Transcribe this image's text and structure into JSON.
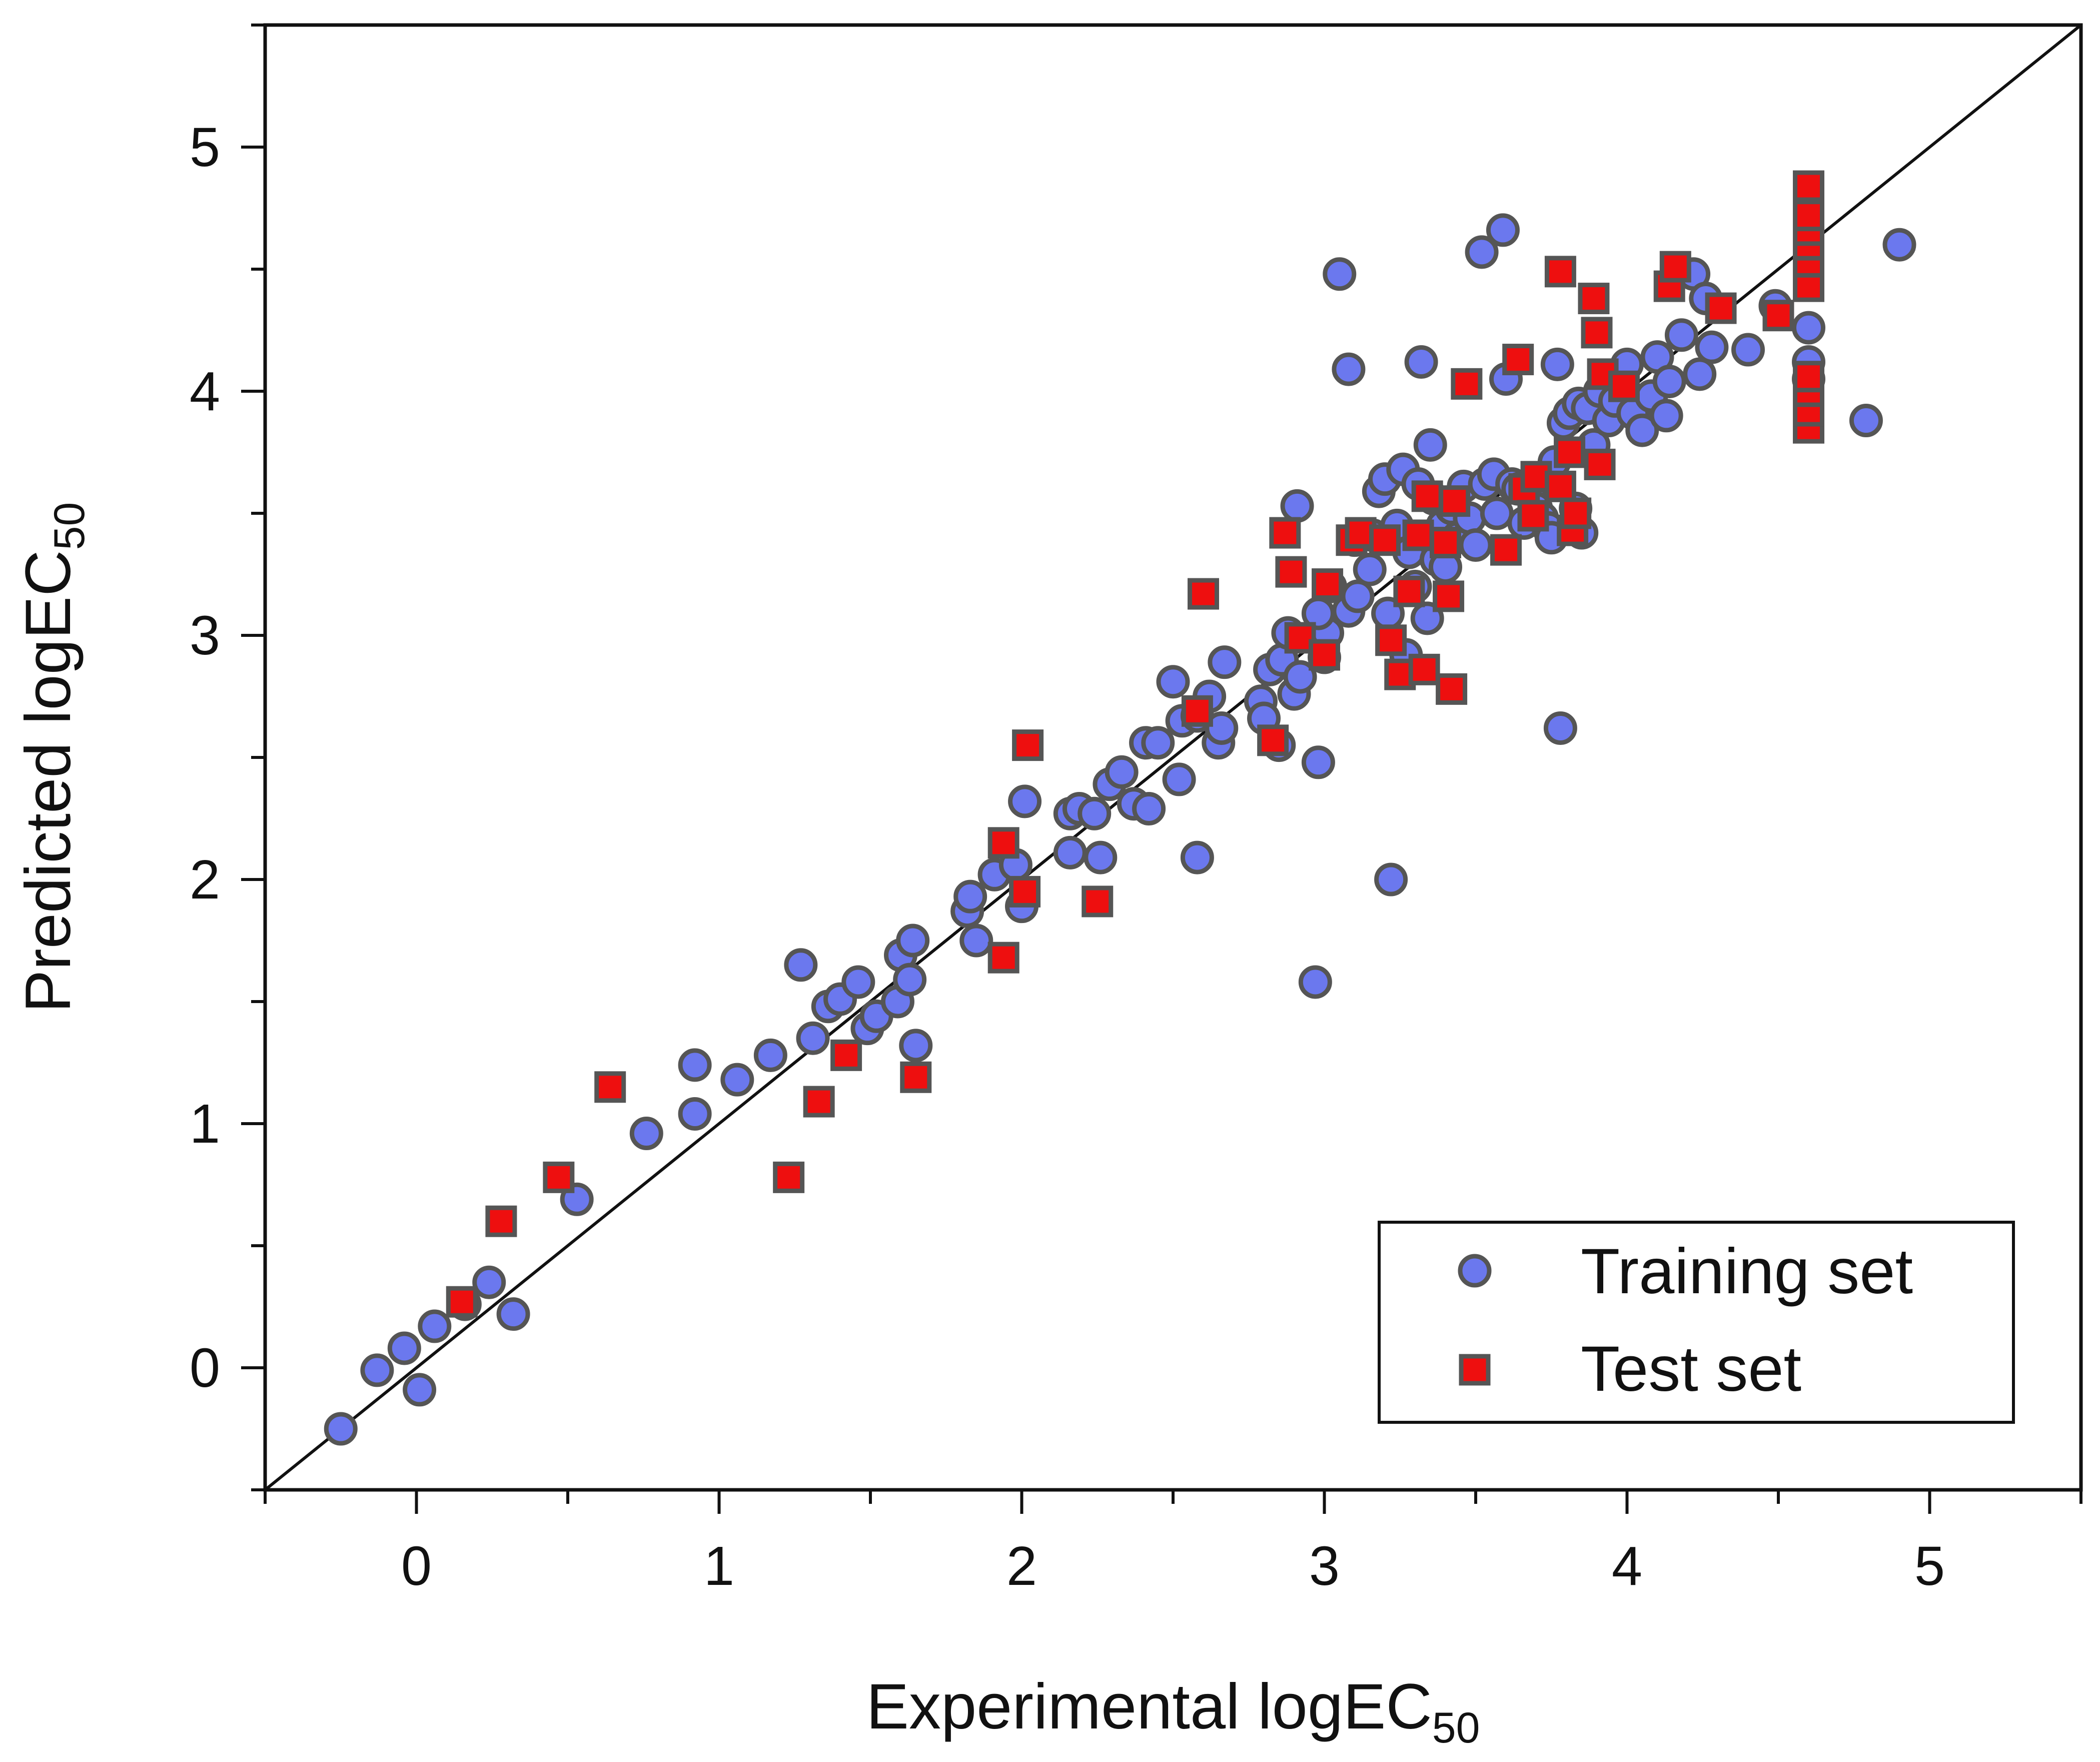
{
  "colors": {
    "training": "#6b78ee",
    "test": "#ee0f0f",
    "edge": "#555555",
    "axis": "#111111"
  },
  "chart_data": {
    "type": "scatter",
    "title": "",
    "xlabel": {
      "main": "Experimental logEC",
      "sub": "50"
    },
    "ylabel": {
      "main": "Predicted logEC",
      "sub": "50"
    },
    "xlim": [
      -0.5,
      5.5
    ],
    "ylim": [
      -0.5,
      5.5
    ],
    "xticks": [
      0,
      1,
      2,
      3,
      4,
      5
    ],
    "yticks": [
      0,
      1,
      2,
      3,
      4,
      5
    ],
    "xtick_labels": [
      "0",
      "1",
      "2",
      "3",
      "4",
      "5"
    ],
    "ytick_labels": [
      "0",
      "1",
      "2",
      "3",
      "4",
      "5"
    ],
    "reference_line": "y = x",
    "legend": {
      "position": "bottom-right",
      "entries": [
        "Training set",
        "Test set"
      ]
    },
    "series": [
      {
        "name": "Training set",
        "marker": "circle",
        "points": [
          [
            -0.25,
            -0.25
          ],
          [
            -0.13,
            -0.01
          ],
          [
            -0.04,
            0.08
          ],
          [
            0.01,
            -0.09
          ],
          [
            0.06,
            0.17
          ],
          [
            0.16,
            0.26
          ],
          [
            0.24,
            0.35
          ],
          [
            0.32,
            0.22
          ],
          [
            0.53,
            0.69
          ],
          [
            0.76,
            0.96
          ],
          [
            0.92,
            1.04
          ],
          [
            0.92,
            1.24
          ],
          [
            1.06,
            1.18
          ],
          [
            1.17,
            1.28
          ],
          [
            1.27,
            1.65
          ],
          [
            1.31,
            1.35
          ],
          [
            1.36,
            1.48
          ],
          [
            1.4,
            1.51
          ],
          [
            1.46,
            1.58
          ],
          [
            1.49,
            1.39
          ],
          [
            1.52,
            1.44
          ],
          [
            1.59,
            1.5
          ],
          [
            1.6,
            1.69
          ],
          [
            1.63,
            1.59
          ],
          [
            1.64,
            1.75
          ],
          [
            1.65,
            1.32
          ],
          [
            1.82,
            1.87
          ],
          [
            1.83,
            1.93
          ],
          [
            1.85,
            1.75
          ],
          [
            1.91,
            2.02
          ],
          [
            1.98,
            2.06
          ],
          [
            2.0,
            1.89
          ],
          [
            2.01,
            2.32
          ],
          [
            2.16,
            2.27
          ],
          [
            2.16,
            2.11
          ],
          [
            2.19,
            2.29
          ],
          [
            2.24,
            2.27
          ],
          [
            2.26,
            2.09
          ],
          [
            2.29,
            2.39
          ],
          [
            2.33,
            2.44
          ],
          [
            2.37,
            2.31
          ],
          [
            2.42,
            2.29
          ],
          [
            2.41,
            2.56
          ],
          [
            2.45,
            2.56
          ],
          [
            2.5,
            2.81
          ],
          [
            2.52,
            2.41
          ],
          [
            2.53,
            2.65
          ],
          [
            2.58,
            2.09
          ],
          [
            2.58,
            2.67
          ],
          [
            2.62,
            2.75
          ],
          [
            2.65,
            2.56
          ],
          [
            2.66,
            2.62
          ],
          [
            2.67,
            2.89
          ],
          [
            2.79,
            2.73
          ],
          [
            2.8,
            2.66
          ],
          [
            2.82,
            2.86
          ],
          [
            2.85,
            2.55
          ],
          [
            2.86,
            2.9
          ],
          [
            2.88,
            3.01
          ],
          [
            2.9,
            2.76
          ],
          [
            2.91,
            3.53
          ],
          [
            2.92,
            2.83
          ],
          [
            2.97,
            1.58
          ],
          [
            2.98,
            2.48
          ],
          [
            3.0,
            2.91
          ],
          [
            3.01,
            3.01
          ],
          [
            2.98,
            3.09
          ],
          [
            3.02,
            3.2
          ],
          [
            3.05,
            4.48
          ],
          [
            3.08,
            3.1
          ],
          [
            3.08,
            4.09
          ],
          [
            3.1,
            3.39
          ],
          [
            3.11,
            3.16
          ],
          [
            3.15,
            3.27
          ],
          [
            3.16,
            3.41
          ],
          [
            3.18,
            3.59
          ],
          [
            3.2,
            3.64
          ],
          [
            3.21,
            3.09
          ],
          [
            3.22,
            2.0
          ],
          [
            3.24,
            3.45
          ],
          [
            3.26,
            3.68
          ],
          [
            3.27,
            2.92
          ],
          [
            3.28,
            3.34
          ],
          [
            3.3,
            3.2
          ],
          [
            3.31,
            3.62
          ],
          [
            3.32,
            4.12
          ],
          [
            3.34,
            3.07
          ],
          [
            3.35,
            3.78
          ],
          [
            3.36,
            3.56
          ],
          [
            3.37,
            3.31
          ],
          [
            3.39,
            3.45
          ],
          [
            3.4,
            3.28
          ],
          [
            3.42,
            3.52
          ],
          [
            3.44,
            3.4
          ],
          [
            3.46,
            3.61
          ],
          [
            3.48,
            3.48
          ],
          [
            3.5,
            3.37
          ],
          [
            3.52,
            4.57
          ],
          [
            3.53,
            3.62
          ],
          [
            3.56,
            3.66
          ],
          [
            3.57,
            3.5
          ],
          [
            3.59,
            4.66
          ],
          [
            3.6,
            4.05
          ],
          [
            3.62,
            3.62
          ],
          [
            3.64,
            3.6
          ],
          [
            3.66,
            3.46
          ],
          [
            3.68,
            3.59
          ],
          [
            3.7,
            3.52
          ],
          [
            3.72,
            3.48
          ],
          [
            3.74,
            3.44
          ],
          [
            3.75,
            3.4
          ],
          [
            3.76,
            3.71
          ],
          [
            3.77,
            4.11
          ],
          [
            3.78,
            2.62
          ],
          [
            3.79,
            3.87
          ],
          [
            3.81,
            3.91
          ],
          [
            3.83,
            3.52
          ],
          [
            3.84,
            3.95
          ],
          [
            3.85,
            3.42
          ],
          [
            3.87,
            3.93
          ],
          [
            3.89,
            3.78
          ],
          [
            3.91,
            4.0
          ],
          [
            3.94,
            3.88
          ],
          [
            3.96,
            3.96
          ],
          [
            3.98,
            4.07
          ],
          [
            4.0,
            4.11
          ],
          [
            4.02,
            3.91
          ],
          [
            4.05,
            3.84
          ],
          [
            4.08,
            3.98
          ],
          [
            4.1,
            4.14
          ],
          [
            4.13,
            3.9
          ],
          [
            4.14,
            4.04
          ],
          [
            4.18,
            4.23
          ],
          [
            4.22,
            4.48
          ],
          [
            4.24,
            4.07
          ],
          [
            4.26,
            4.38
          ],
          [
            4.28,
            4.18
          ],
          [
            4.4,
            4.17
          ],
          [
            4.49,
            4.35
          ],
          [
            4.6,
            4.05
          ],
          [
            4.6,
            4.12
          ],
          [
            4.6,
            4.26
          ],
          [
            4.79,
            3.88
          ],
          [
            4.9,
            4.6
          ]
        ]
      },
      {
        "name": "Test set",
        "marker": "square",
        "points": [
          [
            0.15,
            0.27
          ],
          [
            0.28,
            0.6
          ],
          [
            0.47,
            0.78
          ],
          [
            0.64,
            1.15
          ],
          [
            1.23,
            0.78
          ],
          [
            1.33,
            1.09
          ],
          [
            1.42,
            1.28
          ],
          [
            1.65,
            1.19
          ],
          [
            1.94,
            1.68
          ],
          [
            1.94,
            2.15
          ],
          [
            2.01,
            1.95
          ],
          [
            2.02,
            2.55
          ],
          [
            2.25,
            1.91
          ],
          [
            2.58,
            2.69
          ],
          [
            2.6,
            3.17
          ],
          [
            2.83,
            2.57
          ],
          [
            2.87,
            3.42
          ],
          [
            2.89,
            3.26
          ],
          [
            2.92,
            2.99
          ],
          [
            3.0,
            2.92
          ],
          [
            3.01,
            3.21
          ],
          [
            3.09,
            3.39
          ],
          [
            3.12,
            3.42
          ],
          [
            3.2,
            3.39
          ],
          [
            3.22,
            2.98
          ],
          [
            3.25,
            2.84
          ],
          [
            3.28,
            3.18
          ],
          [
            3.31,
            3.41
          ],
          [
            3.33,
            2.86
          ],
          [
            3.34,
            3.57
          ],
          [
            3.4,
            3.38
          ],
          [
            3.41,
            3.16
          ],
          [
            3.42,
            2.78
          ],
          [
            3.43,
            3.55
          ],
          [
            3.47,
            4.03
          ],
          [
            3.6,
            3.35
          ],
          [
            3.64,
            4.13
          ],
          [
            3.66,
            3.6
          ],
          [
            3.69,
            3.49
          ],
          [
            3.7,
            3.65
          ],
          [
            3.78,
            3.61
          ],
          [
            3.78,
            4.49
          ],
          [
            3.81,
            3.75
          ],
          [
            3.82,
            3.43
          ],
          [
            3.83,
            3.5
          ],
          [
            3.89,
            4.38
          ],
          [
            3.9,
            4.24
          ],
          [
            3.91,
            3.7
          ],
          [
            3.92,
            4.07
          ],
          [
            3.99,
            4.02
          ],
          [
            4.14,
            4.43
          ],
          [
            4.16,
            4.51
          ],
          [
            4.31,
            4.34
          ],
          [
            4.5,
            4.31
          ],
          [
            4.6,
            3.85
          ],
          [
            4.6,
            3.92
          ],
          [
            4.6,
            4.0
          ],
          [
            4.6,
            4.06
          ],
          [
            4.6,
            4.43
          ],
          [
            4.6,
            4.53
          ],
          [
            4.6,
            4.6
          ],
          [
            4.6,
            4.66
          ],
          [
            4.6,
            4.72
          ],
          [
            4.6,
            4.84
          ]
        ]
      }
    ]
  }
}
